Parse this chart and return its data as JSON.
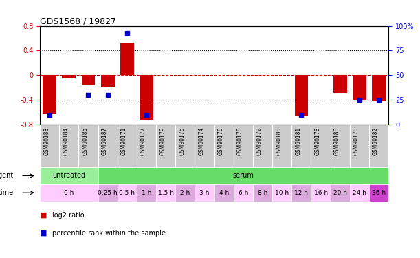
{
  "title": "GDS1568 / 19827",
  "samples": [
    "GSM90183",
    "GSM90184",
    "GSM90185",
    "GSM90187",
    "GSM90171",
    "GSM90177",
    "GSM90179",
    "GSM90175",
    "GSM90174",
    "GSM90176",
    "GSM90178",
    "GSM90172",
    "GSM90180",
    "GSM90181",
    "GSM90173",
    "GSM90186",
    "GSM90170",
    "GSM90182"
  ],
  "log2_ratio": [
    -0.62,
    -0.05,
    -0.16,
    -0.2,
    0.53,
    -0.73,
    0.0,
    0.0,
    0.0,
    0.0,
    0.0,
    0.0,
    0.0,
    -0.65,
    0.0,
    -0.28,
    -0.4,
    -0.42
  ],
  "percentile_rank_show": [
    true,
    false,
    true,
    true,
    true,
    true,
    false,
    false,
    false,
    false,
    false,
    false,
    false,
    true,
    false,
    false,
    true,
    true
  ],
  "percentile_rank": [
    10,
    50,
    30,
    30,
    93,
    10,
    50,
    50,
    50,
    50,
    50,
    50,
    50,
    10,
    50,
    50,
    25,
    25
  ],
  "ylim": [
    -0.8,
    0.8
  ],
  "yticks_left": [
    -0.8,
    -0.4,
    0.0,
    0.4,
    0.8
  ],
  "yticks_right": [
    0,
    25,
    50,
    75,
    100
  ],
  "bar_color": "#cc0000",
  "dot_color": "#0000cc",
  "grid_color": "#000000",
  "zero_line_color": "#cc0000",
  "agent_row": [
    {
      "label": "untreated",
      "start": 0,
      "end": 3,
      "color": "#99ee99"
    },
    {
      "label": "serum",
      "start": 3,
      "end": 18,
      "color": "#66dd66"
    }
  ],
  "time_row": [
    {
      "label": "0 h",
      "start": 0,
      "end": 3,
      "color": "#ffccff"
    },
    {
      "label": "0.25 h",
      "start": 3,
      "end": 4,
      "color": "#ddaadd"
    },
    {
      "label": "0.5 h",
      "start": 4,
      "end": 5,
      "color": "#ffccff"
    },
    {
      "label": "1 h",
      "start": 5,
      "end": 6,
      "color": "#ddaadd"
    },
    {
      "label": "1.5 h",
      "start": 6,
      "end": 7,
      "color": "#ffccff"
    },
    {
      "label": "2 h",
      "start": 7,
      "end": 8,
      "color": "#ddaadd"
    },
    {
      "label": "3 h",
      "start": 8,
      "end": 9,
      "color": "#ffccff"
    },
    {
      "label": "4 h",
      "start": 9,
      "end": 10,
      "color": "#ddaadd"
    },
    {
      "label": "6 h",
      "start": 10,
      "end": 11,
      "color": "#ffccff"
    },
    {
      "label": "8 h",
      "start": 11,
      "end": 12,
      "color": "#ddaadd"
    },
    {
      "label": "10 h",
      "start": 12,
      "end": 13,
      "color": "#ffccff"
    },
    {
      "label": "12 h",
      "start": 13,
      "end": 14,
      "color": "#ddaadd"
    },
    {
      "label": "16 h",
      "start": 14,
      "end": 15,
      "color": "#ffccff"
    },
    {
      "label": "20 h",
      "start": 15,
      "end": 16,
      "color": "#ddaadd"
    },
    {
      "label": "24 h",
      "start": 16,
      "end": 17,
      "color": "#ffccff"
    },
    {
      "label": "36 h",
      "start": 17,
      "end": 18,
      "color": "#cc44cc"
    }
  ],
  "bg_color": "#ffffff",
  "plot_bg_color": "#ffffff",
  "left_label_color": "#cc0000",
  "right_label_color": "#0000cc",
  "label_bg_color": "#cccccc"
}
